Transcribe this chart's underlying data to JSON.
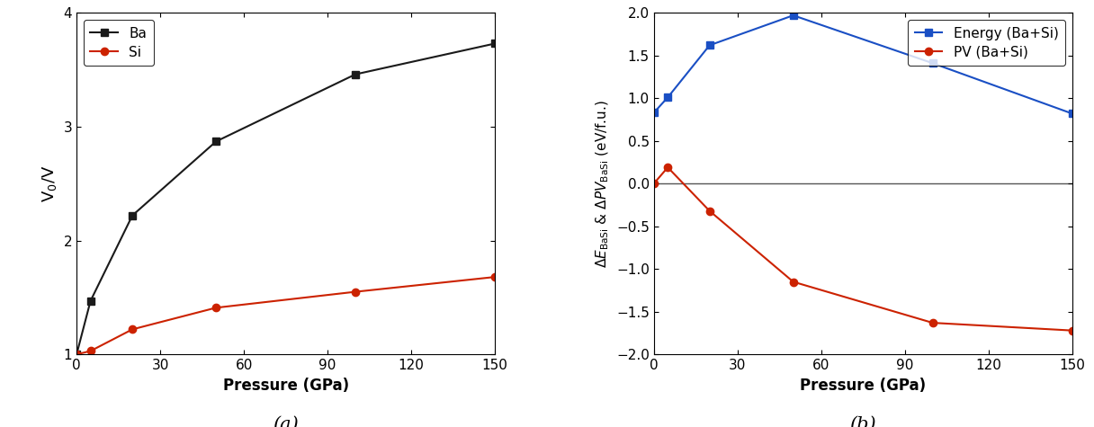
{
  "panel_a": {
    "Ba_x": [
      0,
      5,
      20,
      50,
      100,
      150
    ],
    "Ba_y": [
      1.0,
      1.47,
      2.22,
      2.87,
      3.46,
      3.73
    ],
    "Si_x": [
      0,
      5,
      20,
      50,
      100,
      150
    ],
    "Si_y": [
      1.0,
      1.03,
      1.22,
      1.41,
      1.55,
      1.68
    ],
    "Ba_color": "#1a1a1a",
    "Si_color": "#cc2200",
    "xlabel": "Pressure (GPa)",
    "ylabel": "V$_0$/V",
    "xlim": [
      0,
      150
    ],
    "ylim": [
      1,
      4
    ],
    "yticks": [
      1,
      2,
      3,
      4
    ],
    "xticks": [
      0,
      30,
      60,
      90,
      120,
      150
    ],
    "label_a": "(a)"
  },
  "panel_b": {
    "Energy_x": [
      0,
      5,
      20,
      50,
      100,
      150
    ],
    "Energy_y": [
      0.83,
      1.01,
      1.62,
      1.97,
      1.41,
      0.82
    ],
    "PV_x": [
      0,
      5,
      20,
      50,
      100,
      150
    ],
    "PV_y": [
      0.0,
      0.19,
      -0.32,
      -1.15,
      -1.63,
      -1.72
    ],
    "Energy_color": "#1a4fc4",
    "PV_color": "#cc2200",
    "xlabel": "Pressure (GPa)",
    "ylabel": "$\\Delta \\mathit{E}_{\\mathrm{BaSi}}$ & $\\Delta \\mathit{PV}_{\\mathrm{BaSi}}$ (eV/f.u.)",
    "xlim": [
      0,
      150
    ],
    "ylim": [
      -2.0,
      2.0
    ],
    "yticks": [
      -2.0,
      -1.5,
      -1.0,
      -0.5,
      0.0,
      0.5,
      1.0,
      1.5,
      2.0
    ],
    "xticks": [
      0,
      30,
      60,
      90,
      120,
      150
    ],
    "label_b": "(b)"
  },
  "fig_width": 12.16,
  "fig_height": 4.75,
  "bg_color": "#ffffff"
}
